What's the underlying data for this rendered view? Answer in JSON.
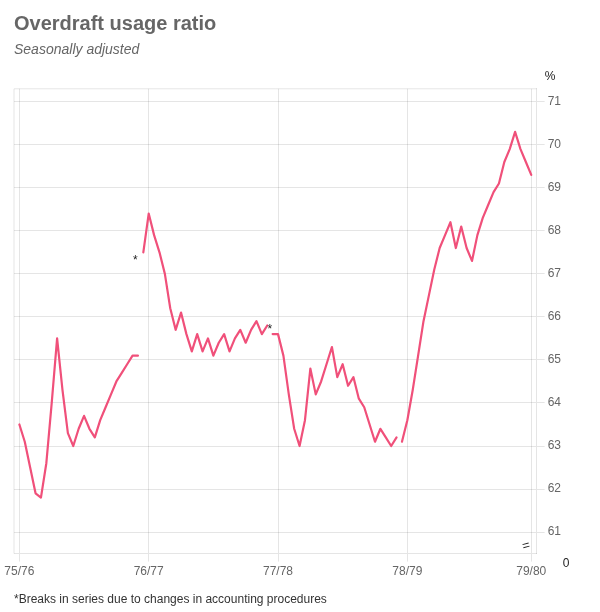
{
  "chart_data": {
    "type": "line",
    "title": "Overdraft usage ratio",
    "subtitle": "Seasonally adjusted",
    "footnote": "*Breaks in series due to changes in accounting procedures",
    "y_label": "%",
    "xlim": [
      -1,
      96
    ],
    "xticks": [
      {
        "value": 0,
        "label": "75/76"
      },
      {
        "value": 24,
        "label": "76/77"
      },
      {
        "value": 48,
        "label": "77/78"
      },
      {
        "value": 72,
        "label": "78/79"
      },
      {
        "value": 95,
        "label": "79/80"
      }
    ],
    "ylim": [
      60.5,
      71.3
    ],
    "yticks": [
      61,
      62,
      63,
      64,
      65,
      66,
      67,
      68,
      69,
      70,
      71
    ],
    "grid": true,
    "series": [
      {
        "color": "#F0507A",
        "x": [
          0,
          1,
          2,
          3,
          4,
          5,
          6,
          7,
          8,
          9,
          10,
          11,
          12,
          13,
          14,
          15,
          16,
          17,
          18,
          19,
          20,
          21,
          22
        ],
        "values": [
          63.5,
          63.1,
          62.5,
          61.9,
          61.8,
          62.6,
          64.0,
          65.5,
          64.3,
          63.3,
          63.0,
          63.4,
          63.7,
          63.4,
          63.2,
          63.6,
          63.9,
          64.2,
          64.5,
          64.7,
          64.9,
          65.1,
          65.1
        ]
      },
      {
        "color": "#F0507A",
        "x": [
          23,
          24,
          25,
          26,
          27,
          28,
          29,
          30,
          31,
          32,
          33,
          34,
          35,
          36,
          37,
          38,
          39,
          40,
          41,
          42,
          43,
          44,
          45,
          46
        ],
        "values": [
          67.5,
          68.4,
          67.9,
          67.5,
          67.0,
          66.2,
          65.7,
          66.1,
          65.6,
          65.2,
          65.6,
          65.2,
          65.5,
          65.1,
          65.4,
          65.6,
          65.2,
          65.5,
          65.7,
          65.4,
          65.7,
          65.9,
          65.6,
          65.8
        ]
      },
      {
        "color": "#F0507A",
        "x": [
          47,
          48,
          49,
          50,
          51,
          52,
          53,
          54,
          55,
          56,
          57,
          58,
          59,
          60,
          61,
          62,
          63,
          64,
          65,
          66,
          67,
          68,
          69,
          70
        ],
        "values": [
          65.6,
          65.6,
          65.1,
          64.2,
          63.4,
          63.0,
          63.6,
          64.8,
          64.2,
          64.5,
          64.9,
          65.3,
          64.6,
          64.9,
          64.4,
          64.6,
          64.1,
          63.9,
          63.5,
          63.1,
          63.4,
          63.2,
          63.0,
          63.2
        ]
      },
      {
        "color": "#F0507A",
        "x": [
          71,
          72,
          73,
          74,
          75,
          76,
          77,
          78,
          79,
          80,
          81,
          82,
          83,
          84,
          85,
          86,
          87,
          88,
          89,
          90,
          91,
          92,
          93,
          94,
          95
        ],
        "values": [
          63.1,
          63.6,
          64.3,
          65.1,
          65.9,
          66.5,
          67.1,
          67.6,
          67.9,
          68.2,
          67.6,
          68.1,
          67.6,
          67.3,
          67.9,
          68.3,
          68.6,
          68.9,
          69.1,
          69.6,
          69.9,
          70.3,
          69.9,
          69.6,
          69.3
        ]
      }
    ],
    "annotations": [
      {
        "text": "*",
        "x": 21.5,
        "y": 67.3
      },
      {
        "text": "*",
        "x": 46.5,
        "y": 65.7
      },
      {
        "text": "=",
        "x": 95,
        "y": 60.55
      },
      {
        "text": "0"
      }
    ]
  }
}
